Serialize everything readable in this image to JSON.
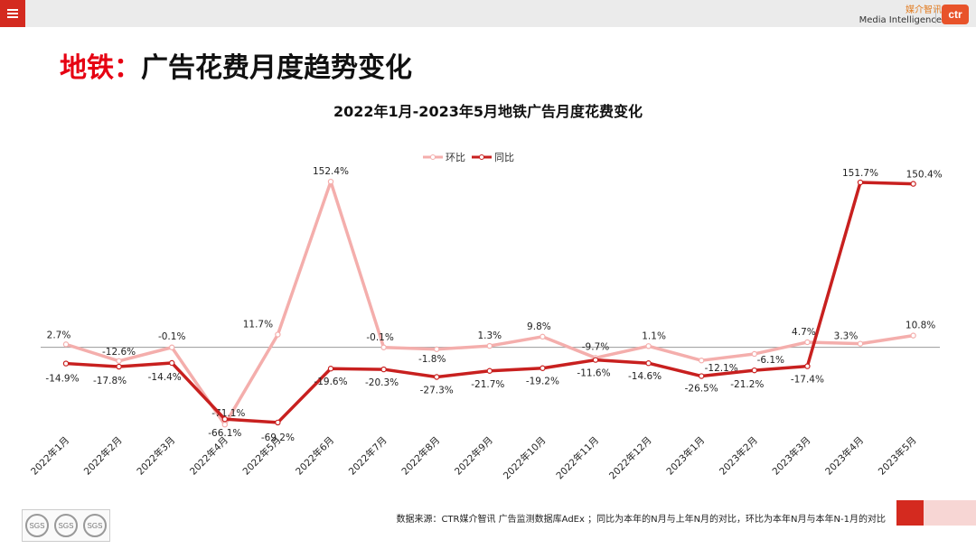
{
  "header": {
    "brand_cn": "媒介智讯",
    "brand_en": "Media Intelligence",
    "logo_text": "ctr"
  },
  "page_title": {
    "prefix": "地铁：",
    "main": "广告花费月度趋势变化"
  },
  "chart_data": {
    "type": "line",
    "title": "2022年1月-2023年5月地铁广告月度花费变化",
    "categories": [
      "2022年1月",
      "2022年2月",
      "2022年3月",
      "2022年4月",
      "2022年5月",
      "2022年6月",
      "2022年7月",
      "2022年8月",
      "2022年9月",
      "2022年10月",
      "2022年11月",
      "2022年12月",
      "2023年1月",
      "2023年2月",
      "2023年3月",
      "2023年4月",
      "2023年5月"
    ],
    "series": [
      {
        "name": "环比",
        "color": "#f4aeac",
        "values": [
          2.7,
          -12.6,
          -0.1,
          -71.1,
          11.7,
          152.4,
          -0.1,
          -1.8,
          1.3,
          9.8,
          -9.7,
          1.1,
          -12.1,
          -6.1,
          4.7,
          3.3,
          10.8
        ],
        "labels": [
          "2.7%",
          "-12.6%",
          "-0.1%",
          "-71.1%",
          "11.7%",
          "152.4%",
          "-0.1%",
          "-1.8%",
          "1.3%",
          "9.8%",
          "-9.7%",
          "1.1%",
          "-12.1%",
          "-6.1%",
          "4.7%",
          "3.3%",
          "10.8%"
        ]
      },
      {
        "name": "同比",
        "color": "#c8201f",
        "values": [
          -14.9,
          -17.8,
          -14.4,
          -66.1,
          -69.2,
          -19.6,
          -20.3,
          -27.3,
          -21.7,
          -19.2,
          -11.6,
          -14.6,
          -26.5,
          -21.2,
          -17.4,
          151.7,
          150.4
        ],
        "labels": [
          "-14.9%",
          "-17.8%",
          "-14.4%",
          "-66.1%",
          "-69.2%",
          "-19.6%",
          "-20.3%",
          "-27.3%",
          "-21.7%",
          "-19.2%",
          "-11.6%",
          "-14.6%",
          "-26.5%",
          "-21.2%",
          "-17.4%",
          "151.7%",
          "150.4%"
        ]
      }
    ],
    "ylim": [
      -100,
      170
    ],
    "legend_position": "top-center",
    "grid": false,
    "zero_line": true
  },
  "footer": {
    "source": "数据来源：CTR媒介智讯 广告监测数据库AdEx ；同比为本年的N月与上年N月的对比，环比为本年N月与本年N-1月的对比",
    "cert_label": "SGS"
  }
}
